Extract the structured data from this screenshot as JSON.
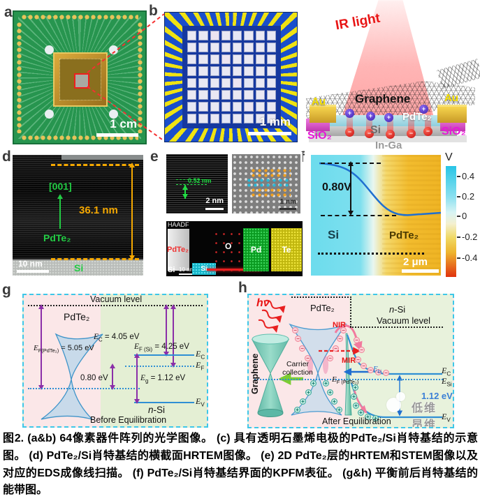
{
  "panels": {
    "a": {
      "label": "a",
      "scale_bar": "1 cm"
    },
    "b": {
      "label": "b",
      "scale_bar": "1 mm",
      "grid": {
        "rows": 8,
        "cols": 8
      }
    },
    "c": {
      "label": "c",
      "ir_light": "IR light",
      "graphene": "Graphene",
      "au_left": "Au",
      "au_right": "Au",
      "pdte2": "PdTe₂",
      "si": "Si",
      "sio2_left": "SiO₂",
      "sio2_right": "SiO₂",
      "inga": "In-Ga",
      "plus": "+",
      "minus": "−"
    },
    "d": {
      "label": "d",
      "direction": "[001]",
      "material": "PdTe₂",
      "thickness": "36.1 nm",
      "scale_bar": "10 nm",
      "substrate": "Si"
    },
    "e": {
      "label": "e",
      "spacing": "0.52 nm",
      "scale_left": "2 nm",
      "scale_right": "1 nm",
      "haadf": "HAADF",
      "pdte2": "PdTe₂",
      "si_corner": "Si",
      "scale_bottom": "10 nm",
      "si_band": "Si",
      "o": "O",
      "pd": "Pd",
      "te": "Te"
    },
    "f": {
      "label": "f",
      "delta": "0.80V",
      "si": "Si",
      "pdte2": "PdTe₂",
      "scale_bar": "2 μm",
      "colorbar": {
        "title": "V",
        "ticks": [
          "0.4",
          "0.2",
          "0",
          "-0.2",
          "-0.4"
        ]
      }
    },
    "g": {
      "label": "g",
      "vacuum": "Vacuum level",
      "pdte2": "PdTe₂",
      "ef_pdte2": {
        "sym": "E",
        "sub": "F(PdTe₂)",
        "eq": " = 5.05 eV"
      },
      "ec_eq": {
        "sym": "E",
        "sub": "C",
        "eq": " = 4.05 eV"
      },
      "ef_si_eq": {
        "sym": "E",
        "sub": "F (Si)",
        "eq": " = 4.25 eV"
      },
      "barrier": "0.80 eV",
      "eg_eq": {
        "sym": "E",
        "sub": "g",
        "eq": " = 1.12 eV"
      },
      "ec": {
        "sym": "E",
        "sub": "C"
      },
      "ef": {
        "sym": "E",
        "sub": "F"
      },
      "ev": {
        "sym": "E",
        "sub": "V"
      },
      "nsi_italic": "n",
      "nsi_rest": "-Si",
      "footer": "Before Equilibration"
    },
    "h": {
      "label": "h",
      "hv": "hν",
      "pdte2": "PdTe₂",
      "nsi_italic": "n",
      "nsi_rest": "-Si",
      "vacuum": "Vacuum level",
      "nir": "NIR",
      "mir": "MIR",
      "graphene": "Graphene",
      "carrier": "Carrier collection",
      "ef_pdte2": {
        "sym": "E",
        "sub": "F (PdTe₂)"
      },
      "ebi": {
        "sym": "E",
        "sub": "bi"
      },
      "gap": "1.12 eV",
      "ec": {
        "sym": "E",
        "sub": "C"
      },
      "esi": {
        "sym": "E",
        "sub": "Si"
      },
      "ev": {
        "sym": "E",
        "sub": "V"
      },
      "plus": "+",
      "minus": "−",
      "footer": "After Equilibration",
      "watermark": "低维 昂维"
    }
  },
  "caption": {
    "text": "图2. (a&b) 64像素器件阵列的光学图像。 (c) 具有透明石墨烯电极的PdTe₂/Si肖特基结的示意图。 (d) PdTe₂/Si肖特基结的横截面HRTEM图像。 (e) 2D PdTe₂层的HRTEM和STEM图像以及对应的EDS成像线扫描。 (f) PdTe₂/Si肖特基结界面的KPFM表征。 (g&h) 平衡前后肖特基结的能带图。"
  },
  "colors": {
    "pcb_green": "#27954f",
    "array_blue": "#1a4ecc",
    "electrode_yellow": "#f0e312",
    "ir_red": "#e81515",
    "sio2_magenta": "#e818d8",
    "annotation_green": "#22cc44",
    "annotation_orange": "#f5a800",
    "kpfm_cyan": "#6cdced",
    "kpfm_yellow": "#f2bc2e",
    "band_purple": "#8b2fa8",
    "band_blue": "#2f8fd4",
    "box_cyan": "#3ec7e8"
  }
}
